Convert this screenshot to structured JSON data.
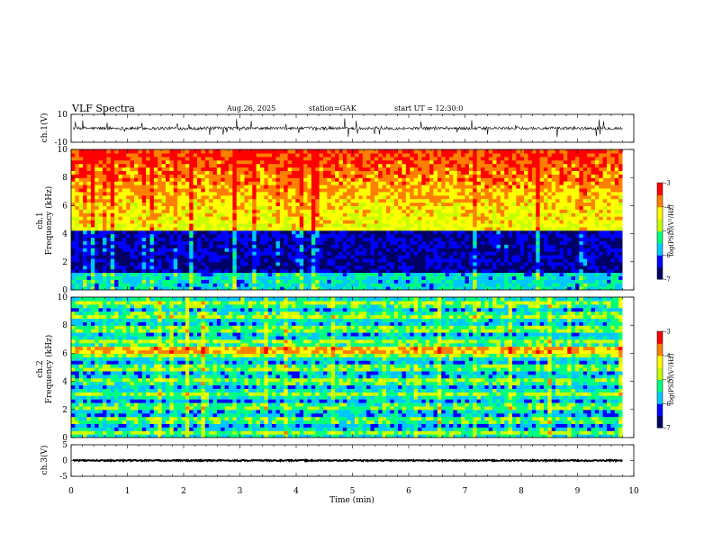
{
  "header": {
    "title": "VLF  Spectra",
    "date": "Aug.26, 2025",
    "station": "station=GAK",
    "start": "start  UT  =   12:30:0"
  },
  "chart_data": [
    {
      "id": "ch1-waveform",
      "type": "line",
      "ylabel": "ch.1(V)",
      "ylim": [
        -10,
        10
      ],
      "yticks": [
        "10",
        "-10"
      ],
      "baseline_value": 0,
      "description_values": "noisy waveform around 0 V with spikes"
    },
    {
      "id": "ch1-spectrogram",
      "type": "heatmap",
      "ylabel_top": "ch.1",
      "ylabel": "Frequency  (kHz)",
      "ylim": [
        0,
        10
      ],
      "yticks": [
        "0",
        "2",
        "4",
        "6",
        "8",
        "10"
      ],
      "colorbar": {
        "label": "log(PSD)(V²/Hz)",
        "range": [
          -7,
          -3
        ],
        "ticks": [
          "-3",
          "-4",
          "-5",
          "-6",
          "-7"
        ]
      }
    },
    {
      "id": "ch2-spectrogram",
      "type": "heatmap",
      "ylabel_top": "ch.2",
      "ylabel": "Frequency  (kHz)",
      "ylim": [
        0,
        10
      ],
      "yticks": [
        "0",
        "2",
        "4",
        "6",
        "8",
        "10"
      ],
      "colorbar": {
        "label": "log(PSD)(V²/Hz)",
        "range": [
          -7,
          -3
        ],
        "ticks": [
          "-3",
          "-4",
          "-5",
          "-6",
          "-7"
        ]
      }
    },
    {
      "id": "ch3-waveform",
      "type": "line",
      "ylabel": "ch.3(V)",
      "ylim": [
        -5,
        5
      ],
      "yticks": [
        "5",
        "0",
        "-5"
      ],
      "baseline_value": 0
    }
  ],
  "x_axis": {
    "label": "Time  (min)",
    "range": [
      0,
      10
    ],
    "ticks": [
      "0",
      "1",
      "2",
      "3",
      "4",
      "5",
      "6",
      "7",
      "8",
      "9",
      "10"
    ],
    "data_end": 9.8
  },
  "colors": {
    "scale": [
      "#000066",
      "#0000ff",
      "#00c8ff",
      "#00ff80",
      "#c8ff00",
      "#ffff00",
      "#ff8000",
      "#ff0000",
      "#ffffff"
    ]
  }
}
